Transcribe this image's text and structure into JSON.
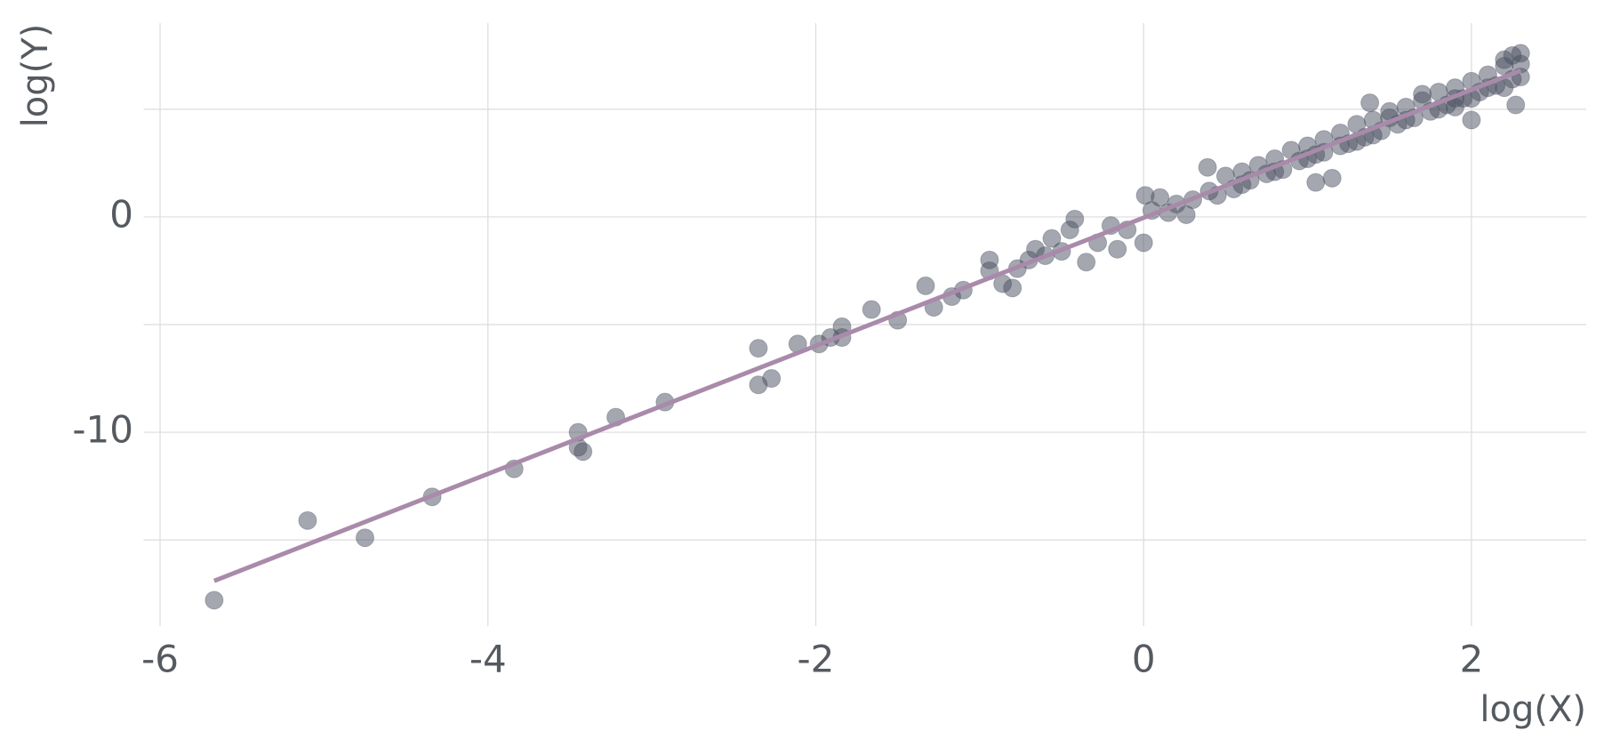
{
  "chart_data": {
    "type": "scatter",
    "x_label": "log(X)",
    "y_label": "log(Y)",
    "xlim": [
      -6.1,
      2.7
    ],
    "ylim": [
      -19,
      9
    ],
    "xticks": [
      -6,
      -4,
      -2,
      0,
      2
    ],
    "yticks": [
      -10,
      0
    ],
    "yminor": [
      -15,
      -5,
      5
    ],
    "grid": true,
    "color": "#4a5060",
    "x": [
      -5.67,
      -5.1,
      -4.75,
      -4.34,
      -3.84,
      -3.45,
      -3.45,
      -3.42,
      -3.22,
      -2.92,
      -2.35,
      -2.35,
      -2.27,
      -2.11,
      -1.98,
      -1.91,
      -1.84,
      -1.84,
      -1.66,
      -1.5,
      -1.33,
      -1.28,
      -1.17,
      -1.1,
      -0.94,
      -0.94,
      -0.86,
      -0.8,
      -0.77,
      -0.66,
      -0.56,
      -0.42,
      -0.35,
      -0.28,
      -0.16,
      0,
      0.01,
      0.2,
      0.26,
      0.39,
      0.45,
      0.5,
      0.55,
      0.6,
      0.65,
      0.7,
      0.75,
      0.8,
      0.85,
      0.9,
      0.95,
      1.0,
      1.05,
      1.1,
      1.15,
      1.2,
      1.25,
      1.3,
      1.35,
      1.4,
      1.45,
      1.5,
      1.55,
      1.6,
      1.65,
      1.7,
      1.75,
      1.8,
      1.85,
      1.9,
      1.95,
      2.0,
      2.05,
      2.1,
      2.15,
      2.2,
      2.25,
      2.3,
      0.6,
      0.8,
      1.0,
      1.2,
      1.4,
      1.6,
      1.8,
      2.0,
      2.2,
      2.3,
      1.1,
      1.3,
      1.5,
      1.7,
      1.9,
      2.1,
      2.25,
      2.2,
      2.3,
      2.0,
      1.9,
      2.27,
      0.4,
      0.3,
      0.1,
      0.05,
      0.15,
      -0.1,
      -0.2,
      -0.5,
      -0.6,
      -0.7,
      -0.45,
      1.38,
      1.05
    ],
    "values": [
      -17.8,
      -14.1,
      -14.9,
      -13.0,
      -11.7,
      -10.0,
      -10.7,
      -10.9,
      -9.3,
      -8.6,
      -6.1,
      -7.8,
      -7.5,
      -5.9,
      -5.9,
      -5.6,
      -5.1,
      -5.6,
      -4.3,
      -4.8,
      -3.2,
      -4.2,
      -3.7,
      -3.4,
      -2.0,
      -2.5,
      -3.1,
      -3.3,
      -2.4,
      -1.5,
      -1.0,
      -0.1,
      -2.1,
      -1.2,
      -1.5,
      -1.2,
      1.0,
      0.6,
      0.1,
      2.3,
      1.0,
      1.9,
      1.3,
      2.1,
      1.7,
      2.4,
      2.0,
      2.7,
      2.2,
      3.1,
      2.6,
      3.3,
      2.9,
      3.6,
      1.8,
      3.9,
      3.4,
      4.3,
      3.7,
      4.5,
      4.0,
      4.9,
      4.3,
      5.1,
      4.6,
      5.4,
      4.9,
      5.8,
      5.2,
      6.0,
      5.5,
      6.3,
      5.8,
      6.6,
      6.1,
      7.0,
      6.4,
      7.1,
      1.5,
      2.1,
      2.7,
      3.3,
      3.8,
      4.5,
      5.0,
      5.5,
      6.0,
      6.5,
      3.0,
      3.5,
      4.6,
      5.7,
      5.5,
      6.0,
      7.5,
      7.3,
      7.6,
      4.5,
      5.1,
      5.2,
      1.2,
      0.8,
      0.9,
      0.3,
      0.2,
      -0.6,
      -0.4,
      -1.6,
      -1.8,
      -2.0,
      -0.6,
      5.3,
      1.6
    ],
    "fit": {
      "color": "#a98aaa",
      "x": [
        -5.67,
        2.3
      ],
      "values": [
        -16.9,
        6.8
      ]
    }
  }
}
